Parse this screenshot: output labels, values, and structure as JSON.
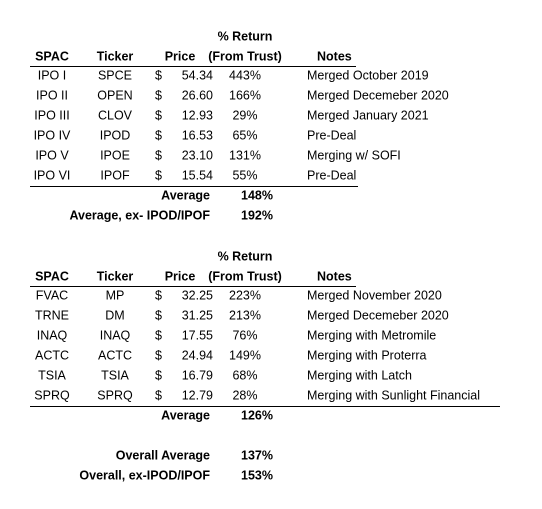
{
  "tables": [
    {
      "header": {
        "return_top": "% Return",
        "columns": [
          "SPAC",
          "Ticker",
          "Price",
          "(From Trust)",
          "Notes"
        ]
      },
      "currency": "$",
      "rows": [
        [
          "IPO I",
          "SPCE",
          "54.34",
          "443%",
          "Merged October 2019"
        ],
        [
          "IPO II",
          "OPEN",
          "26.60",
          "166%",
          "Merged Decemeber 2020"
        ],
        [
          "IPO III",
          "CLOV",
          "12.93",
          "29%",
          "Merged January 2021"
        ],
        [
          "IPO IV",
          "IPOD",
          "16.53",
          "65%",
          "Pre-Deal"
        ],
        [
          "IPO V",
          "IPOE",
          "23.10",
          "131%",
          "Merging w/ SOFI"
        ],
        [
          "IPO VI",
          "IPOF",
          "15.54",
          "55%",
          "Pre-Deal"
        ]
      ],
      "summary": [
        {
          "label": "Average",
          "value": "148%"
        },
        {
          "label": "Average, ex- IPOD/IPOF",
          "value": "192%"
        }
      ]
    },
    {
      "header": {
        "return_top": "% Return",
        "columns": [
          "SPAC",
          "Ticker",
          "Price",
          "(From Trust)",
          "Notes"
        ]
      },
      "currency": "$",
      "rows": [
        [
          "FVAC",
          "MP",
          "32.25",
          "223%",
          "Merged November 2020"
        ],
        [
          "TRNE",
          "DM",
          "31.25",
          "213%",
          "Merged Decemeber 2020"
        ],
        [
          "INAQ",
          "INAQ",
          "17.55",
          "76%",
          "Merging with Metromile"
        ],
        [
          "ACTC",
          "ACTC",
          "24.94",
          "149%",
          "Merging with Proterra"
        ],
        [
          "TSIA",
          "TSIA",
          "16.79",
          "68%",
          "Merging with Latch"
        ],
        [
          "SPRQ",
          "SPRQ",
          "12.79",
          "28%",
          "Merging with Sunlight Financial"
        ]
      ],
      "summary": [
        {
          "label": "Average",
          "value": "126%"
        }
      ]
    }
  ],
  "overall": [
    {
      "label": "Overall Average",
      "value": "137%"
    },
    {
      "label": "Overall, ex-IPOD/IPOF",
      "value": "153%"
    }
  ]
}
